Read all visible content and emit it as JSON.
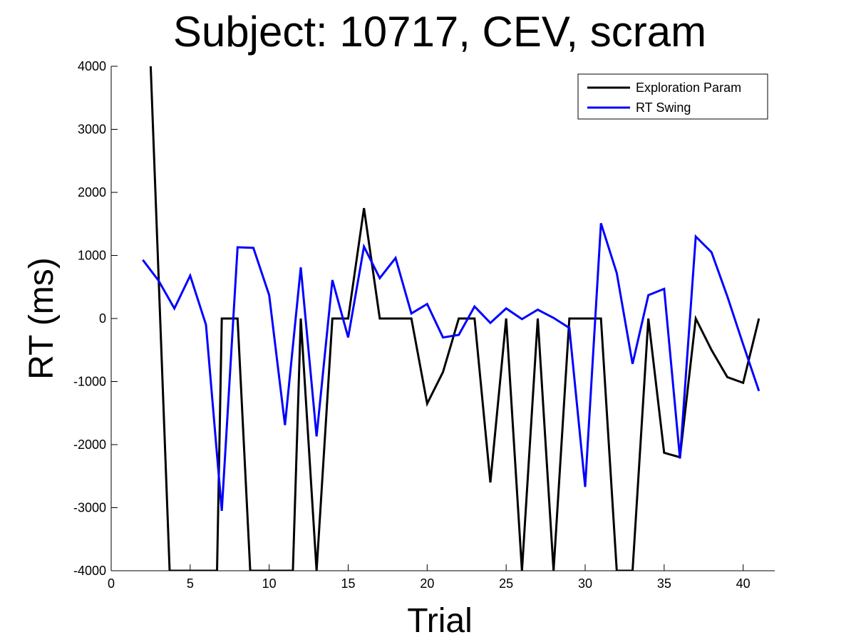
{
  "chart_data": {
    "type": "line",
    "title": "Subject: 10717, CEV, scram",
    "xlabel": "Trial",
    "ylabel": "RT (ms)",
    "xlim": [
      0,
      42
    ],
    "ylim": [
      -4000,
      4000
    ],
    "xticks": [
      "0",
      "5",
      "10",
      "15",
      "20",
      "25",
      "30",
      "35",
      "40"
    ],
    "yticks": [
      "-4000",
      "-3000",
      "-2000",
      "-1000",
      "0",
      "1000",
      "2000",
      "3000",
      "4000"
    ],
    "grid": false,
    "legend_position": "top-right",
    "series": [
      {
        "name": "Exploration Param",
        "color": "#000000",
        "points": [
          [
            2.5,
            4000
          ],
          [
            3.7,
            -4000
          ],
          [
            6.7,
            -4000
          ],
          [
            7,
            0
          ],
          [
            8,
            0
          ],
          [
            8.8,
            -4000
          ],
          [
            11.5,
            -4000
          ],
          [
            12,
            0
          ],
          [
            13,
            -4000
          ],
          [
            14,
            0
          ],
          [
            15,
            0
          ],
          [
            16,
            1750
          ],
          [
            17,
            0
          ],
          [
            18,
            0
          ],
          [
            19,
            0
          ],
          [
            20,
            -1350
          ],
          [
            21,
            -850
          ],
          [
            22,
            0
          ],
          [
            23,
            0
          ],
          [
            24,
            -2600
          ],
          [
            25,
            0
          ],
          [
            26,
            -4000
          ],
          [
            27,
            0
          ],
          [
            28,
            -4000
          ],
          [
            29,
            0
          ],
          [
            30,
            0
          ],
          [
            31,
            0
          ],
          [
            32,
            -4000
          ],
          [
            33,
            -4000
          ],
          [
            34,
            0
          ],
          [
            35,
            -2130
          ],
          [
            36,
            -2200
          ],
          [
            37,
            0
          ],
          [
            38,
            -500
          ],
          [
            39,
            -930
          ],
          [
            40,
            -1020
          ],
          [
            41,
            0
          ]
        ]
      },
      {
        "name": "RT Swing",
        "color": "#0000ff",
        "points": [
          [
            2,
            930
          ],
          [
            3,
            600
          ],
          [
            4,
            160
          ],
          [
            5,
            680
          ],
          [
            6,
            -100
          ],
          [
            7,
            -3050
          ],
          [
            8,
            1130
          ],
          [
            9,
            1120
          ],
          [
            10,
            370
          ],
          [
            11,
            -1690
          ],
          [
            12,
            810
          ],
          [
            13,
            -1870
          ],
          [
            14,
            610
          ],
          [
            15,
            -300
          ],
          [
            16,
            1140
          ],
          [
            17,
            640
          ],
          [
            18,
            960
          ],
          [
            19,
            80
          ],
          [
            20,
            230
          ],
          [
            21,
            -300
          ],
          [
            22,
            -260
          ],
          [
            23,
            190
          ],
          [
            24,
            -70
          ],
          [
            25,
            160
          ],
          [
            26,
            -10
          ],
          [
            27,
            140
          ],
          [
            28,
            10
          ],
          [
            29,
            -150
          ],
          [
            30,
            -2670
          ],
          [
            31,
            1510
          ],
          [
            32,
            720
          ],
          [
            33,
            -720
          ],
          [
            34,
            370
          ],
          [
            35,
            470
          ],
          [
            36,
            -2220
          ],
          [
            37,
            1300
          ],
          [
            38,
            1050
          ],
          [
            39,
            350
          ],
          [
            40,
            -410
          ],
          [
            41,
            -1150
          ]
        ]
      }
    ]
  }
}
